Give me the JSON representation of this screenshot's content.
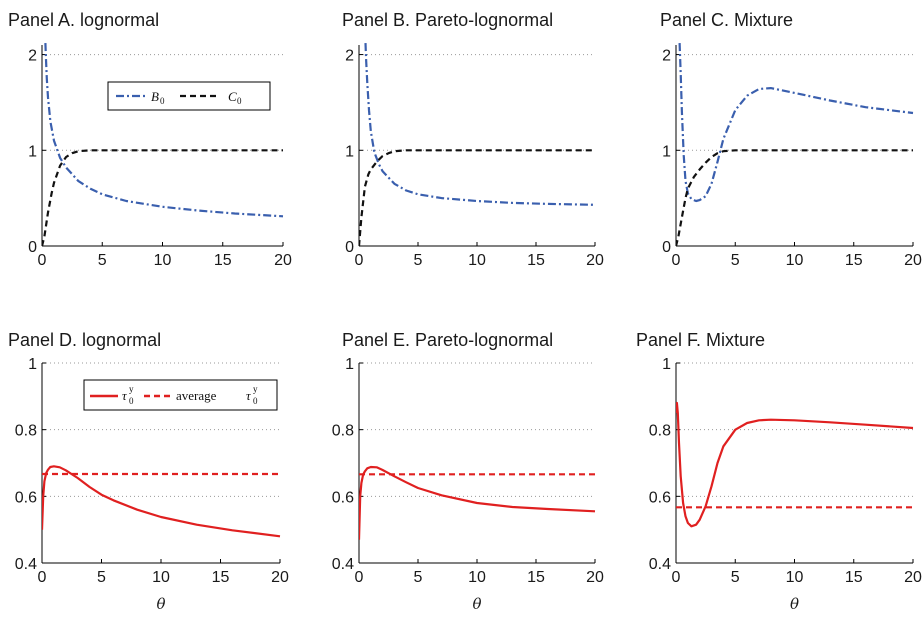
{
  "colors": {
    "blue": "#3a5fae",
    "black": "#111111",
    "red": "#e02020"
  },
  "chart_data": [
    {
      "id": "A",
      "type": "line",
      "title": "Panel A. lognormal",
      "xlabel": "",
      "xlim": [
        0,
        20
      ],
      "ylim": [
        0,
        2.1
      ],
      "xticks": [
        0,
        5,
        10,
        15,
        20
      ],
      "yticks": [
        0,
        1,
        2
      ],
      "gridlines": [
        1,
        2
      ],
      "legend": {
        "visible": true,
        "placement": "top-center",
        "entries": [
          {
            "series": "B",
            "base": "B",
            "sub": "0"
          },
          {
            "series": "C",
            "base": "C",
            "sub": "0"
          }
        ]
      },
      "series": [
        {
          "name": "B0",
          "color": "blue",
          "style": "dashdot",
          "x": [
            0.28,
            0.33,
            0.4,
            0.5,
            0.7,
            1,
            1.5,
            2,
            3,
            4,
            5,
            7,
            10,
            13,
            16,
            20
          ],
          "y": [
            2.12,
            1.95,
            1.75,
            1.55,
            1.3,
            1.1,
            0.92,
            0.82,
            0.68,
            0.6,
            0.54,
            0.47,
            0.41,
            0.37,
            0.34,
            0.31
          ]
        },
        {
          "name": "C0",
          "color": "black",
          "style": "dashed",
          "x": [
            0,
            0.2,
            0.5,
            0.8,
            1,
            1.5,
            2,
            2.5,
            3,
            4,
            5,
            7,
            10,
            15,
            20
          ],
          "y": [
            0,
            0.1,
            0.35,
            0.55,
            0.66,
            0.84,
            0.93,
            0.97,
            0.99,
            1,
            1,
            1,
            1,
            1,
            1
          ]
        }
      ]
    },
    {
      "id": "B",
      "type": "line",
      "title": "Panel B. Pareto-lognormal",
      "xlabel": "",
      "xlim": [
        0,
        20
      ],
      "ylim": [
        0,
        2.1
      ],
      "xticks": [
        0,
        5,
        10,
        15,
        20
      ],
      "yticks": [
        0,
        1,
        2
      ],
      "gridlines": [
        1,
        2
      ],
      "legend": {
        "visible": false,
        "entries": []
      },
      "series": [
        {
          "name": "B0",
          "color": "blue",
          "style": "dashdot",
          "x": [
            0.55,
            0.6,
            0.7,
            0.85,
            1,
            1.3,
            1.7,
            2,
            3,
            4,
            5,
            7,
            10,
            13,
            16,
            20
          ],
          "y": [
            2.12,
            1.95,
            1.7,
            1.42,
            1.2,
            0.98,
            0.85,
            0.78,
            0.65,
            0.58,
            0.54,
            0.5,
            0.47,
            0.45,
            0.44,
            0.43
          ]
        },
        {
          "name": "C0",
          "color": "black",
          "style": "dashed",
          "x": [
            0,
            0.2,
            0.5,
            0.8,
            1,
            1.5,
            2,
            2.5,
            3,
            4,
            5,
            7,
            10,
            15,
            20
          ],
          "y": [
            0,
            0.3,
            0.62,
            0.75,
            0.8,
            0.88,
            0.94,
            0.97,
            0.99,
            1,
            1,
            1,
            1,
            1,
            1
          ]
        }
      ]
    },
    {
      "id": "C",
      "type": "line",
      "title": "Panel C. Mixture",
      "xlabel": "",
      "xlim": [
        0,
        20
      ],
      "ylim": [
        0,
        2.1
      ],
      "xticks": [
        0,
        5,
        10,
        15,
        20
      ],
      "yticks": [
        0,
        1,
        2
      ],
      "gridlines": [
        1,
        2
      ],
      "legend": {
        "visible": false,
        "entries": []
      },
      "series": [
        {
          "name": "B0",
          "color": "blue",
          "style": "dashdot",
          "x": [
            0.3,
            0.4,
            0.5,
            0.65,
            0.8,
            1,
            1.3,
            1.7,
            2,
            2.5,
            3,
            3.5,
            4,
            5,
            6,
            7,
            8,
            10,
            13,
            16,
            20
          ],
          "y": [
            2.12,
            1.8,
            1.4,
            0.95,
            0.68,
            0.55,
            0.49,
            0.47,
            0.48,
            0.52,
            0.65,
            0.88,
            1.12,
            1.42,
            1.57,
            1.64,
            1.65,
            1.6,
            1.52,
            1.45,
            1.39
          ]
        },
        {
          "name": "C0",
          "color": "black",
          "style": "dashed",
          "x": [
            0,
            0.2,
            0.5,
            0.8,
            1,
            1.5,
            2,
            2.5,
            3,
            3.5,
            4,
            5,
            7,
            10,
            15,
            20
          ],
          "y": [
            0,
            0.1,
            0.3,
            0.5,
            0.6,
            0.72,
            0.8,
            0.87,
            0.93,
            0.97,
            0.99,
            1,
            1,
            1,
            1,
            1
          ]
        }
      ]
    },
    {
      "id": "D",
      "type": "line",
      "title": "Panel D. lognormal",
      "xlabel": "θ",
      "xlim": [
        0,
        20
      ],
      "ylim": [
        0.4,
        1
      ],
      "xticks": [
        0,
        5,
        10,
        15,
        20
      ],
      "yticks": [
        0.4,
        0.6,
        0.8,
        1
      ],
      "gridlines": [
        0.6,
        0.8,
        1
      ],
      "legend": {
        "visible": true,
        "placement": "top-center",
        "entries": [
          {
            "series": "tau",
            "prefix": "",
            "base": "τ",
            "sub": "0",
            "sup": "y"
          },
          {
            "series": "avg",
            "prefix": "average ",
            "base": "τ",
            "sub": "0",
            "sup": "y"
          }
        ]
      },
      "series": [
        {
          "name": "tau0y",
          "color": "red",
          "style": "solid",
          "x": [
            0,
            0.1,
            0.2,
            0.35,
            0.5,
            0.7,
            1,
            1.5,
            2,
            3,
            4,
            5,
            6,
            8,
            10,
            13,
            16,
            20
          ],
          "y": [
            0.5,
            0.6,
            0.645,
            0.67,
            0.68,
            0.688,
            0.69,
            0.687,
            0.678,
            0.655,
            0.628,
            0.605,
            0.588,
            0.56,
            0.538,
            0.515,
            0.498,
            0.48
          ]
        },
        {
          "name": "average tau0y",
          "color": "red",
          "style": "dashed",
          "x": [
            0,
            20
          ],
          "y": [
            0.667,
            0.667
          ]
        }
      ]
    },
    {
      "id": "E",
      "type": "line",
      "title": "Panel E. Pareto-lognormal",
      "xlabel": "θ",
      "xlim": [
        0,
        20
      ],
      "ylim": [
        0.4,
        1
      ],
      "xticks": [
        0,
        5,
        10,
        15,
        20
      ],
      "yticks": [
        0.4,
        0.6,
        0.8,
        1
      ],
      "gridlines": [
        0.6,
        0.8,
        1
      ],
      "legend": {
        "visible": false,
        "entries": []
      },
      "series": [
        {
          "name": "tau0y",
          "color": "red",
          "style": "solid",
          "x": [
            0,
            0.1,
            0.2,
            0.35,
            0.5,
            0.7,
            1,
            1.5,
            2,
            3,
            4,
            5,
            7,
            10,
            13,
            16,
            20
          ],
          "y": [
            0.47,
            0.6,
            0.64,
            0.665,
            0.675,
            0.684,
            0.688,
            0.687,
            0.679,
            0.66,
            0.642,
            0.625,
            0.603,
            0.58,
            0.568,
            0.562,
            0.555
          ]
        },
        {
          "name": "average tau0y",
          "color": "red",
          "style": "dashed",
          "x": [
            0,
            20
          ],
          "y": [
            0.666,
            0.666
          ]
        }
      ]
    },
    {
      "id": "F",
      "type": "line",
      "title": "Panel F. Mixture",
      "xlabel": "θ",
      "xlim": [
        0,
        20
      ],
      "ylim": [
        0.4,
        1
      ],
      "xticks": [
        0,
        5,
        10,
        15,
        20
      ],
      "yticks": [
        0.4,
        0.6,
        0.8,
        1
      ],
      "gridlines": [
        0.6,
        0.8,
        1
      ],
      "legend": {
        "visible": false,
        "entries": []
      },
      "series": [
        {
          "name": "tau0y",
          "color": "red",
          "style": "solid",
          "x": [
            0,
            0.08,
            0.15,
            0.25,
            0.4,
            0.6,
            0.8,
            1,
            1.3,
            1.7,
            2,
            2.5,
            3,
            3.5,
            4,
            5,
            6,
            7,
            8,
            10,
            13,
            16,
            20
          ],
          "y": [
            0.85,
            0.88,
            0.85,
            0.76,
            0.66,
            0.58,
            0.54,
            0.52,
            0.51,
            0.515,
            0.53,
            0.57,
            0.63,
            0.7,
            0.75,
            0.8,
            0.82,
            0.828,
            0.83,
            0.828,
            0.822,
            0.815,
            0.805
          ]
        },
        {
          "name": "average tau0y",
          "color": "red",
          "style": "dashed",
          "x": [
            0,
            20
          ],
          "y": [
            0.567,
            0.567
          ]
        }
      ]
    }
  ]
}
